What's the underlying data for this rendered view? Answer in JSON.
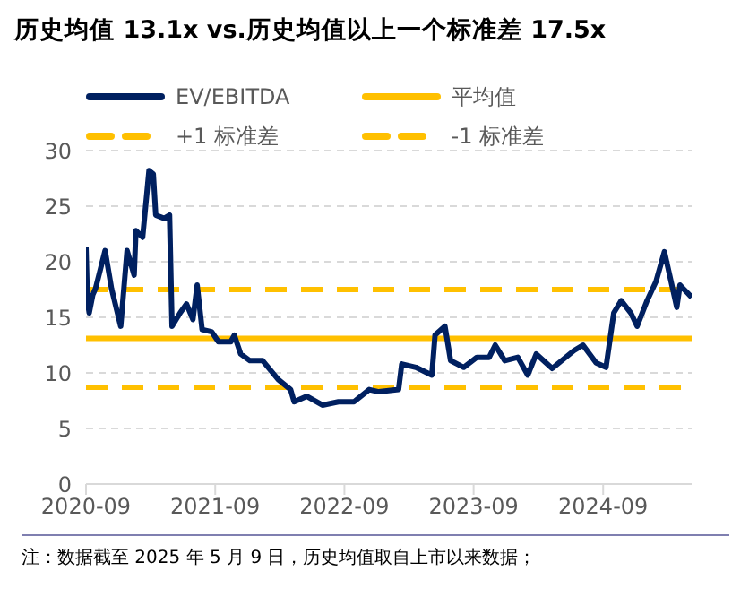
{
  "chart_data": {
    "type": "line",
    "title": "历史均值 13.1x vs.历史均值以上一个标准差 17.5x",
    "x": [
      "2020-09-01",
      "2020-09-05",
      "2020-09-10",
      "2020-09-20",
      "2020-09-28",
      "2020-10-25",
      "2020-11-12",
      "2020-12-08",
      "2020-12-26",
      "2021-01-15",
      "2021-01-20",
      "2021-02-08",
      "2021-02-26",
      "2021-03-10",
      "2021-03-17",
      "2021-04-10",
      "2021-04-25",
      "2021-05-02",
      "2021-05-25",
      "2021-06-12",
      "2021-06-30",
      "2021-07-12",
      "2021-07-26",
      "2021-08-22",
      "2021-09-10",
      "2021-10-15",
      "2021-10-25",
      "2021-11-12",
      "2021-12-08",
      "2022-01-13",
      "2022-02-26",
      "2022-04-02",
      "2022-04-12",
      "2022-05-18",
      "2022-07-01",
      "2022-08-15",
      "2022-09-28",
      "2022-11-10",
      "2022-12-07",
      "2023-02-01",
      "2023-02-10",
      "2023-03-22",
      "2023-05-06",
      "2023-05-15",
      "2023-06-12",
      "2023-06-28",
      "2023-08-04",
      "2023-09-10",
      "2023-10-15",
      "2023-11-01",
      "2023-11-28",
      "2024-01-04",
      "2024-02-01",
      "2024-02-25",
      "2024-04-10",
      "2024-06-10",
      "2024-07-06",
      "2024-08-12",
      "2024-09-09",
      "2024-10-01",
      "2024-10-22",
      "2024-11-18",
      "2024-12-06",
      "2025-01-03",
      "2025-01-28",
      "2025-02-21",
      "2025-03-12",
      "2025-03-28",
      "2025-04-06",
      "2025-05-09"
    ],
    "series": [
      {
        "name": "EV/EBITDA",
        "color": "#002060",
        "values": [
          21.3,
          16.5,
          15.4,
          17,
          17.6,
          21,
          17.6,
          14.2,
          21,
          18.8,
          22.8,
          22.2,
          28.2,
          27.9,
          24.2,
          23.9,
          24.2,
          14.2,
          15.4,
          16.2,
          14.8,
          17.9,
          13.9,
          13.7,
          12.8,
          12.8,
          13.4,
          11.7,
          11.1,
          11.1,
          9.4,
          8.5,
          7.4,
          7.9,
          7.1,
          7.4,
          7.4,
          8.5,
          8.3,
          8.5,
          10.8,
          10.5,
          9.8,
          13.4,
          14.2,
          11.1,
          10.5,
          11.4,
          11.4,
          12.5,
          11.1,
          11.4,
          9.8,
          11.7,
          10.4,
          12,
          12.5,
          10.9,
          10.5,
          15.4,
          16.5,
          15.4,
          14.2,
          16.5,
          18.2,
          20.9,
          18.2,
          15.9,
          17.9,
          16.8
        ]
      }
    ],
    "ref_lines": [
      {
        "axis": "y",
        "value": 13.1,
        "label": "平均值",
        "color": "#ffc000",
        "line_style": "solid"
      },
      {
        "axis": "y",
        "value": 17.5,
        "label": "+1 标准差",
        "color": "#ffc000",
        "line_style": "dashed"
      },
      {
        "axis": "y",
        "value": 8.7,
        "label": "-1 标准差",
        "color": "#ffc000",
        "line_style": "dashed"
      }
    ],
    "xlim": [
      "2020-09-01",
      "2025-05-09"
    ],
    "xticks": [
      "2020-09",
      "2021-09",
      "2022-09",
      "2023-09",
      "2024-09"
    ],
    "ylim": [
      0,
      30
    ],
    "yticks": [
      0,
      5,
      10,
      15,
      20,
      25,
      30
    ],
    "grid": "y",
    "legend": "top",
    "marker": "none",
    "line_style": "solid",
    "annotations": [
      "注：数据截至 2025 年 5 月 9 日，历史均值取自上市以来数据；"
    ]
  }
}
